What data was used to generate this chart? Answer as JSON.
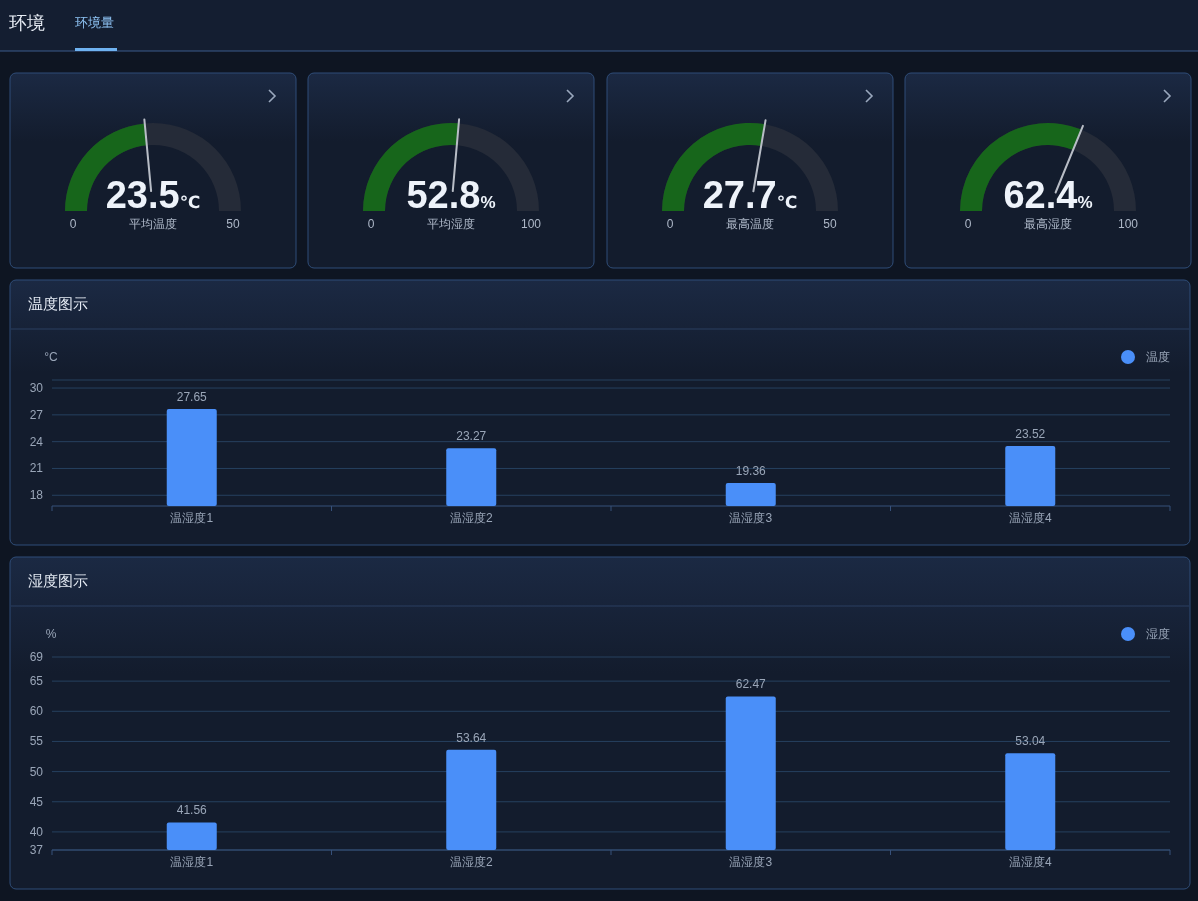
{
  "chart_data": [
    {
      "type": "other",
      "title": "环境",
      "annotations": [
        "环境量"
      ]
    },
    {
      "type": "other",
      "xlabel": "平均温度",
      "ylabel": "℃",
      "values": [
        23.5
      ],
      "value_labels": [
        "23.5"
      ],
      "annotations": [
        "0",
        "50"
      ]
    },
    {
      "type": "other",
      "xlabel": "平均湿度",
      "ylabel": "%",
      "values": [
        52.8
      ],
      "value_labels": [
        "52.8"
      ],
      "annotations": [
        "0",
        "100"
      ]
    },
    {
      "type": "other",
      "xlabel": "最高温度",
      "ylabel": "℃",
      "values": [
        27.7
      ],
      "value_labels": [
        "27.7"
      ],
      "annotations": [
        "0",
        "50"
      ]
    },
    {
      "type": "other",
      "xlabel": "最高湿度",
      "ylabel": "%",
      "values": [
        62.4
      ],
      "value_labels": [
        "62.4"
      ],
      "annotations": [
        "0",
        "100"
      ]
    },
    {
      "type": "bar",
      "title": "温度图示",
      "ylabel": "°C",
      "categories": [
        "温湿度1",
        "温湿度2",
        "温湿度3",
        "温湿度4"
      ],
      "series": [
        {
          "name": "温度",
          "color": "#4a8ff9",
          "values": [
            27.65,
            23.27,
            19.36,
            23.52
          ]
        }
      ],
      "data_labels": true,
      "ylim": [
        16.8,
        30.9
      ],
      "yticks": [
        18,
        21,
        24,
        27,
        30,
        {
          "value": 30.9,
          "label": null
        }
      ],
      "grid": "y",
      "legend": "top right"
    },
    {
      "type": "bar",
      "title": "湿度图示",
      "ylabel": "%",
      "categories": [
        "温湿度1",
        "温湿度2",
        "温湿度3",
        "温湿度4"
      ],
      "series": [
        {
          "name": "湿度",
          "color": "#4a8ff9",
          "values": [
            41.56,
            53.64,
            62.47,
            53.04
          ]
        }
      ],
      "data_labels": true,
      "ylim": [
        37,
        69
      ],
      "yticks": [
        37,
        40,
        45,
        50,
        55,
        60,
        65,
        69
      ],
      "grid": "y",
      "legend": "top right"
    }
  ]
}
